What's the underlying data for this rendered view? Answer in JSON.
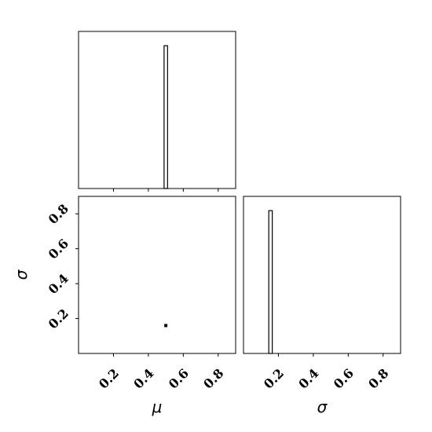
{
  "chart_data": [
    {
      "type": "histogram",
      "panel": "marginal-mu",
      "parameter": "μ",
      "xlim": [
        0.0,
        0.9
      ],
      "xticks": [
        0.2,
        0.4,
        0.6,
        0.8
      ],
      "tick_labels_visible": false,
      "bins": [
        {
          "x0": 0.49,
          "x1": 0.51,
          "density": 1.0
        }
      ],
      "ylim": [
        0,
        1.1
      ]
    },
    {
      "type": "scatter",
      "panel": "joint-mu-sigma",
      "xlabel": "μ",
      "ylabel": "σ",
      "xlim": [
        0.0,
        0.9
      ],
      "ylim": [
        0.0,
        0.9
      ],
      "xticks": [
        0.2,
        0.4,
        0.6,
        0.8
      ],
      "yticks": [
        0.2,
        0.4,
        0.6,
        0.8
      ],
      "xtick_labels": [
        "0.2",
        "0.4",
        "0.6",
        "0.8"
      ],
      "ytick_labels": [
        "0.2",
        "0.4",
        "0.6",
        "0.8"
      ],
      "points": [
        {
          "x": 0.5,
          "y": 0.16
        }
      ]
    },
    {
      "type": "histogram",
      "panel": "marginal-sigma",
      "xlabel": "σ",
      "xlim": [
        0.0,
        0.9
      ],
      "xticks": [
        0.2,
        0.4,
        0.6,
        0.8
      ],
      "xtick_labels": [
        "0.2",
        "0.4",
        "0.6",
        "0.8"
      ],
      "bins": [
        {
          "x0": 0.145,
          "x1": 0.165,
          "density": 1.0
        }
      ],
      "ylim": [
        0,
        1.1
      ]
    }
  ]
}
